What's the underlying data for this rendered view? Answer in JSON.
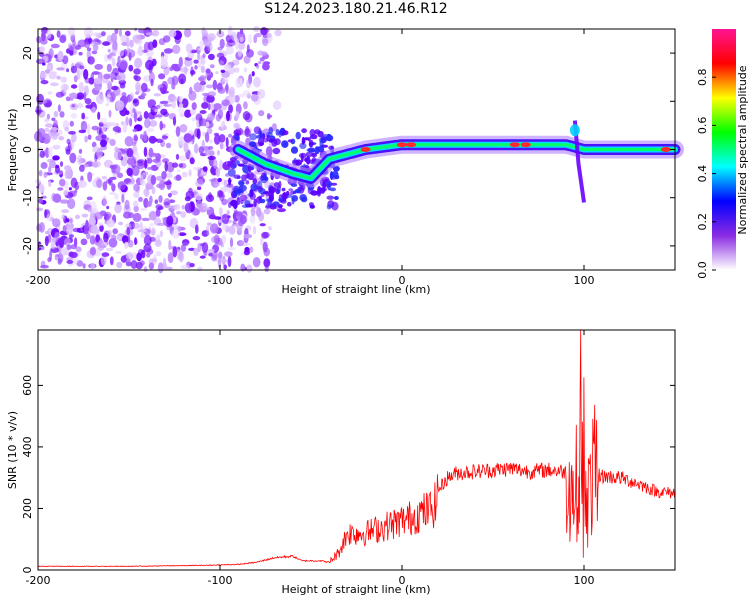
{
  "title": "S124.2023.180.21.46.R12",
  "chart_data": [
    {
      "type": "heatmap",
      "title": "S124.2023.180.21.46.R12",
      "xlabel": "Height of straight line (km)",
      "ylabel": "Frequency (Hz)",
      "xlim": [
        -200,
        150
      ],
      "ylim": [
        -25,
        25
      ],
      "xticks": [
        -200,
        -100,
        0,
        100
      ],
      "yticks": [
        -20,
        -10,
        0,
        10,
        20
      ],
      "colorbar": {
        "label": "Normalized spectral amplitude",
        "range": [
          0,
          1
        ],
        "ticks": [
          "0.0",
          "0.2",
          "0.4",
          "0.6",
          "0.8"
        ],
        "colormap": [
          "#ffffff",
          "#8a2be2",
          "#0000ff",
          "#00ffff",
          "#00ff00",
          "#ffff00",
          "#ff0000",
          "#ff1493"
        ]
      },
      "features": {
        "noise_region_x": [
          -200,
          -90
        ],
        "signal_ridge": [
          {
            "x": -90,
            "y": 0
          },
          {
            "x": -75,
            "y": -3
          },
          {
            "x": -60,
            "y": -5
          },
          {
            "x": -50,
            "y": -6
          },
          {
            "x": -40,
            "y": -2
          },
          {
            "x": -30,
            "y": -1
          },
          {
            "x": -20,
            "y": 0
          },
          {
            "x": 0,
            "y": 1
          },
          {
            "x": 20,
            "y": 1
          },
          {
            "x": 60,
            "y": 1
          },
          {
            "x": 90,
            "y": 1
          },
          {
            "x": 100,
            "y": 0
          },
          {
            "x": 150,
            "y": 0
          }
        ],
        "spike_x": 95
      }
    },
    {
      "type": "line",
      "xlabel": "Height of straight line (km)",
      "ylabel": "SNR (10 * v/v)",
      "xlim": [
        -200,
        150
      ],
      "ylim": [
        0,
        780
      ],
      "xticks": [
        -200,
        -100,
        0,
        100
      ],
      "yticks": [
        0,
        200,
        400,
        600
      ],
      "line_color": "#ff0000",
      "x": [
        -200,
        -150,
        -110,
        -90,
        -80,
        -70,
        -60,
        -55,
        -50,
        -45,
        -40,
        -35,
        -30,
        -25,
        -20,
        -15,
        -10,
        -5,
        0,
        5,
        10,
        15,
        18,
        20,
        25,
        30,
        40,
        50,
        60,
        70,
        80,
        90,
        92,
        95,
        97,
        100,
        102,
        105,
        110,
        120,
        130,
        140,
        150
      ],
      "y": [
        12,
        12,
        15,
        18,
        25,
        40,
        45,
        30,
        30,
        30,
        25,
        55,
        120,
        120,
        120,
        130,
        140,
        150,
        160,
        170,
        185,
        195,
        210,
        260,
        300,
        315,
        320,
        325,
        330,
        320,
        325,
        320,
        300,
        240,
        350,
        420,
        220,
        320,
        305,
        300,
        280,
        255,
        250
      ]
    }
  ]
}
